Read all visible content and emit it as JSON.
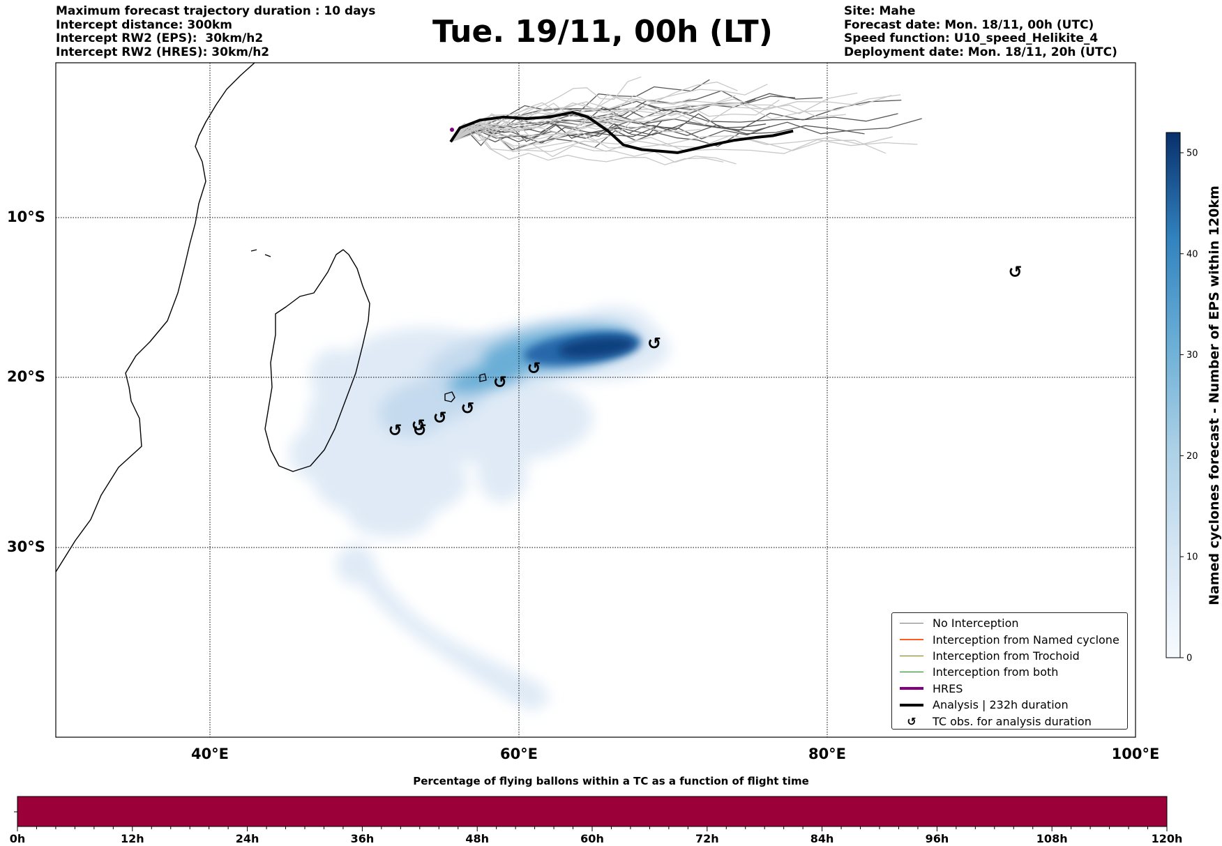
{
  "header": {
    "left_lines": [
      "Maximum forecast trajectory duration : 10 days",
      "Intercept distance: 300km",
      "Intercept RW2 (EPS):  30km/h2",
      "Intercept RW2 (HRES): 30km/h2"
    ],
    "title": "Tue. 19/11, 00h (LT)",
    "right_lines": [
      "Site: Mahe",
      "Forecast date: Mon. 18/11, 00h (UTC)",
      "Speed function: U10_speed_Helikite_4",
      "Deployment date: Mon. 18/11, 20h (UTC)"
    ]
  },
  "map": {
    "lat_labels": [
      "10°S",
      "20°S",
      "30°S"
    ],
    "lon_labels": [
      "40°E",
      "60°E",
      "80°E",
      "100°E"
    ],
    "lon_range": [
      30,
      100
    ],
    "lat_range": [
      0.5,
      -43
    ],
    "grid": true,
    "colors": {
      "land_outline": "#000000",
      "ens_track_dark": "#555555",
      "ens_track_light": "#c8c8c8",
      "analysis": "#000000",
      "hres": "#800080"
    },
    "tc_observations": [
      {
        "lon": 52.0,
        "lat": -23.2
      },
      {
        "lon": 53.5,
        "lat": -22.9
      },
      {
        "lon": 53.6,
        "lat": -23.2
      },
      {
        "lon": 54.9,
        "lat": -22.4
      },
      {
        "lon": 56.7,
        "lat": -21.8
      },
      {
        "lon": 58.8,
        "lat": -20.1
      },
      {
        "lon": 61.0,
        "lat": -19.2
      },
      {
        "lon": 68.8,
        "lat": -17.6
      },
      {
        "lon": 92.2,
        "lat": -13.0
      }
    ],
    "analysis_track": [
      [
        55.6,
        -4.6
      ],
      [
        56.2,
        -3.7
      ],
      [
        57.5,
        -3.2
      ],
      [
        59.0,
        -3.0
      ],
      [
        60.5,
        -3.1
      ],
      [
        62.0,
        -3.0
      ],
      [
        63.5,
        -2.7
      ],
      [
        64.5,
        -3.0
      ],
      [
        65.8,
        -3.9
      ],
      [
        66.8,
        -4.8
      ],
      [
        68.0,
        -5.1
      ],
      [
        69.2,
        -5.2
      ],
      [
        70.3,
        -5.3
      ],
      [
        71.2,
        -5.1
      ],
      [
        72.5,
        -4.8
      ],
      [
        74.0,
        -4.5
      ],
      [
        75.5,
        -4.3
      ],
      [
        76.5,
        -4.2
      ],
      [
        77.8,
        -3.9
      ]
    ],
    "density_field": {
      "label": "Named cyclones forecast - Number of EPS within 120km",
      "colorbar_ticks": [
        0,
        10,
        20,
        30,
        40,
        50
      ],
      "max": 52,
      "cmap": "Blues"
    }
  },
  "legend": {
    "items": [
      {
        "label": "No Interception",
        "color": "#777777",
        "kind": "line",
        "width": 1.2
      },
      {
        "label": "Interception from Named cyclone",
        "color": "#ff5a1f",
        "kind": "line",
        "width": 1.2
      },
      {
        "label": "Interception from Trochoid",
        "color": "#808000",
        "kind": "line",
        "width": 1.2
      },
      {
        "label": "Interception from both",
        "color": "#00a000",
        "kind": "line",
        "width": 1.2
      },
      {
        "label": "HRES",
        "color": "#800080",
        "kind": "line",
        "width": 4
      },
      {
        "label": "Analysis | 232h duration",
        "color": "#000000",
        "kind": "line",
        "width": 4
      },
      {
        "label": "TC obs. for analysis duration",
        "color": "#000000",
        "kind": "symbol",
        "symbol": "↺"
      }
    ]
  },
  "flight_bar": {
    "title": "Percentage of flying ballons within a TC as a function of flight time",
    "color": "#9b0039",
    "tick_labels": [
      "0h",
      "12h",
      "24h",
      "36h",
      "48h",
      "60h",
      "72h",
      "84h",
      "96h",
      "108h",
      "120h"
    ]
  }
}
